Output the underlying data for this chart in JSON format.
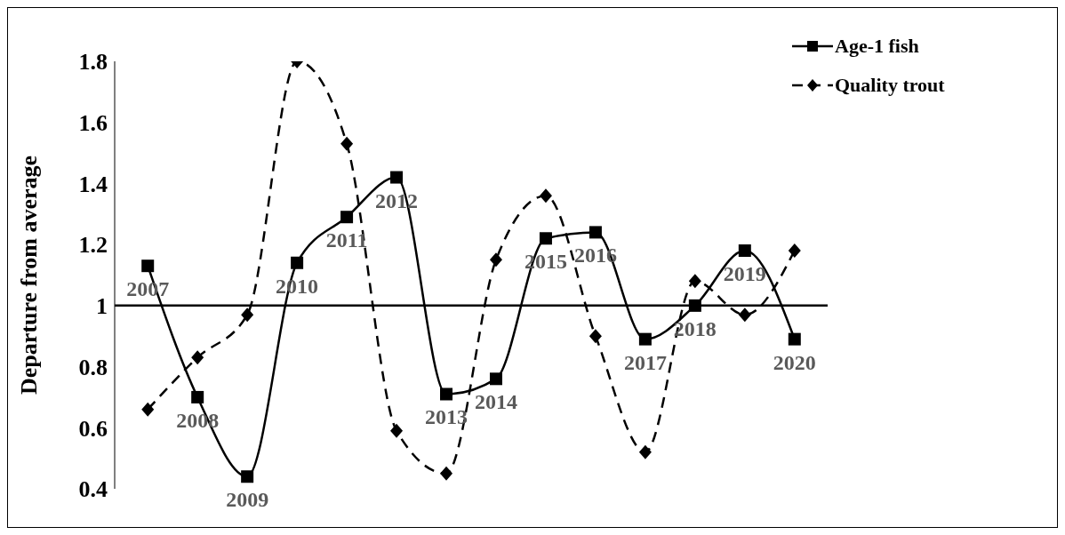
{
  "chart_data": {
    "type": "line",
    "ylabel": "Departure from average",
    "categories": [
      "2007",
      "2008",
      "2009",
      "2010",
      "2011",
      "2012",
      "2013",
      "2014",
      "2015",
      "2016",
      "2017",
      "2018",
      "2019",
      "2020"
    ],
    "series": [
      {
        "name": "Age-1 fish",
        "color": "#000000",
        "marker": "square",
        "line_style": "solid",
        "values": [
          1.13,
          0.7,
          0.44,
          1.14,
          1.29,
          1.42,
          0.71,
          0.76,
          1.22,
          1.24,
          0.89,
          1.0,
          1.18,
          0.89
        ]
      },
      {
        "name": "Quality trout",
        "color": "#000000",
        "marker": "diamond",
        "line_style": "dashed",
        "values": [
          0.66,
          0.83,
          0.97,
          1.8,
          1.53,
          0.59,
          0.45,
          1.15,
          1.36,
          0.9,
          0.52,
          1.08,
          0.97,
          1.18
        ]
      }
    ],
    "ylim": [
      0.4,
      1.8
    ],
    "yticks": [
      0.4,
      0.6,
      0.8,
      1,
      1.2,
      1.4,
      1.6,
      1.8
    ],
    "ref_lines": [
      {
        "axis": "y",
        "value": 1,
        "color": "#000000"
      }
    ],
    "grid": false,
    "legend": "top right"
  }
}
